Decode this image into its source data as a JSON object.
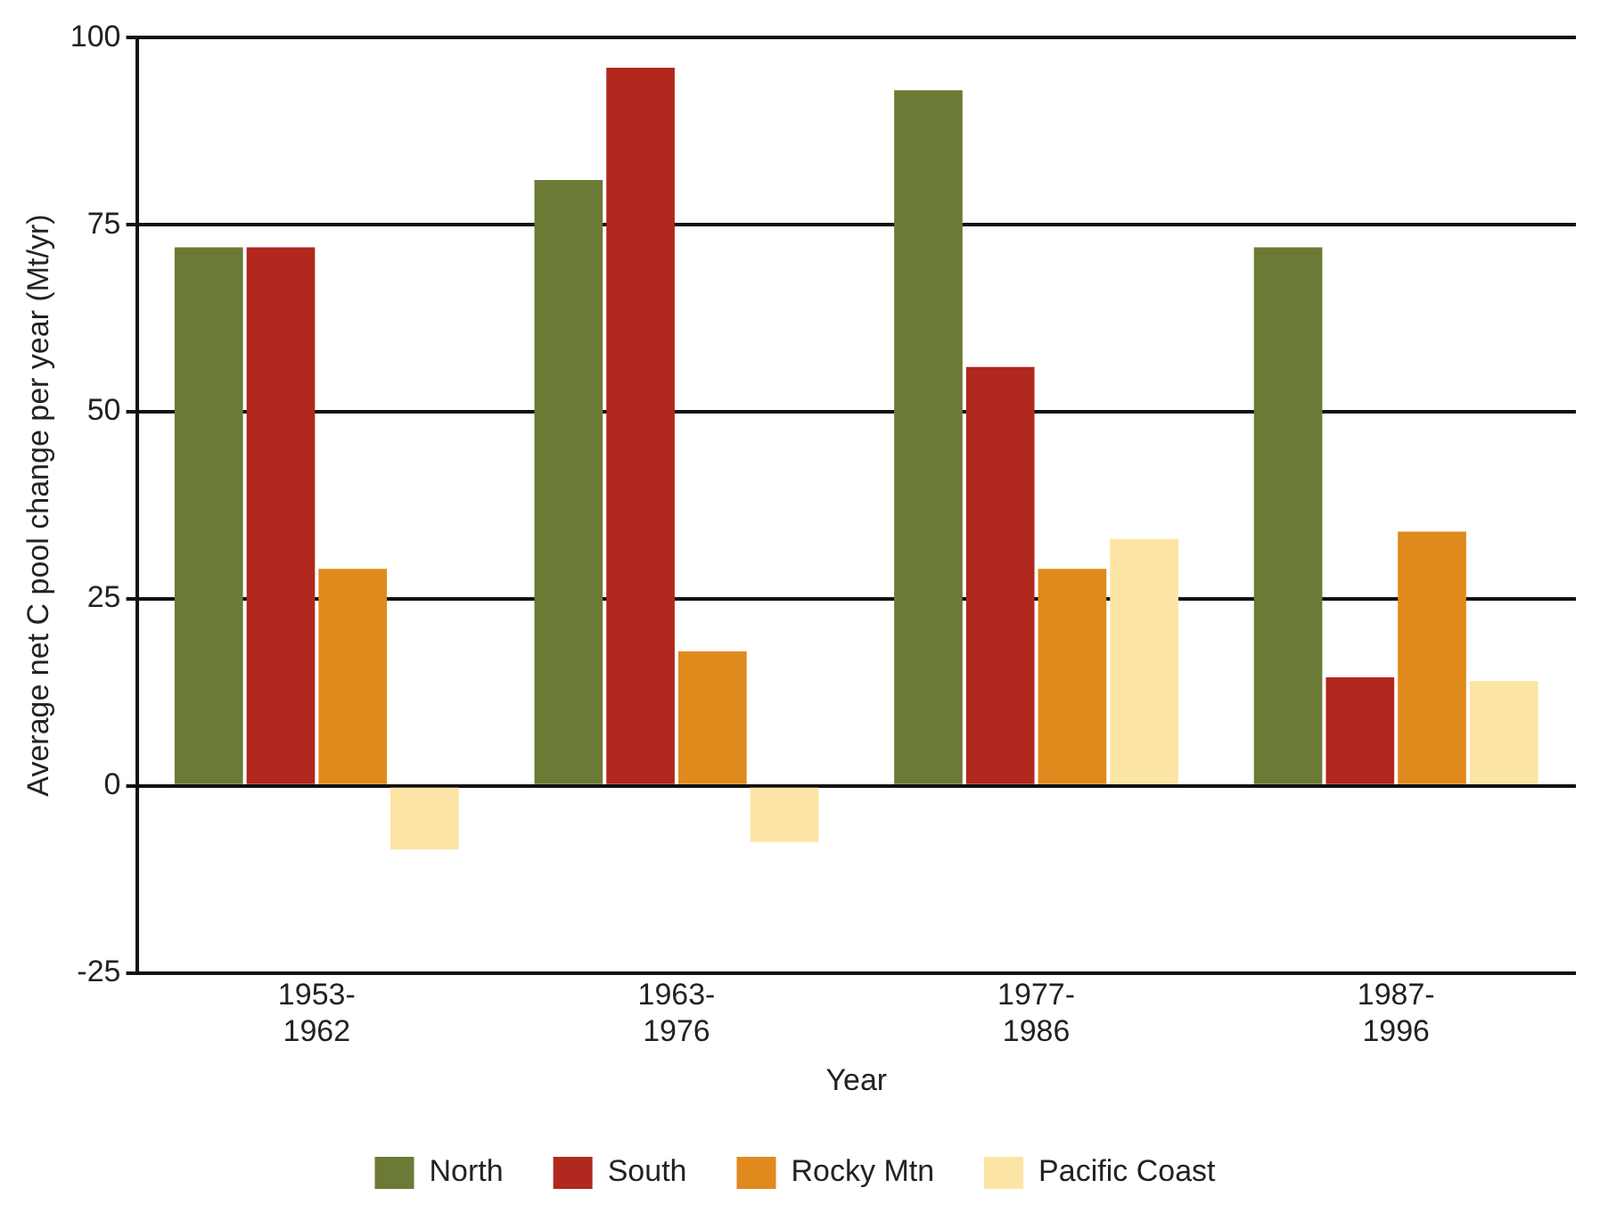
{
  "chart_data": {
    "type": "bar",
    "xlabel": "Year",
    "ylabel": "Average net C pool change per year (Mt/yr)",
    "categories": [
      "1953-1962",
      "1963-1976",
      "1977-1986",
      "1987-1996"
    ],
    "series": [
      {
        "name": "North",
        "color": "#6b7a35",
        "values": [
          72,
          81,
          93,
          72
        ]
      },
      {
        "name": "South",
        "color": "#b0281e",
        "values": [
          72,
          96,
          56,
          14.5
        ]
      },
      {
        "name": "Rocky Mtn",
        "color": "#e08a1e",
        "values": [
          29,
          18,
          29,
          34
        ]
      },
      {
        "name": "Pacific Coast",
        "color": "#fce4a4",
        "values": [
          -8.5,
          -7.5,
          33,
          14
        ]
      }
    ],
    "ylim": [
      -25,
      100
    ],
    "yticks": [
      -25,
      0,
      25,
      50,
      75,
      100
    ],
    "grid": "y",
    "legend": "bottom"
  }
}
